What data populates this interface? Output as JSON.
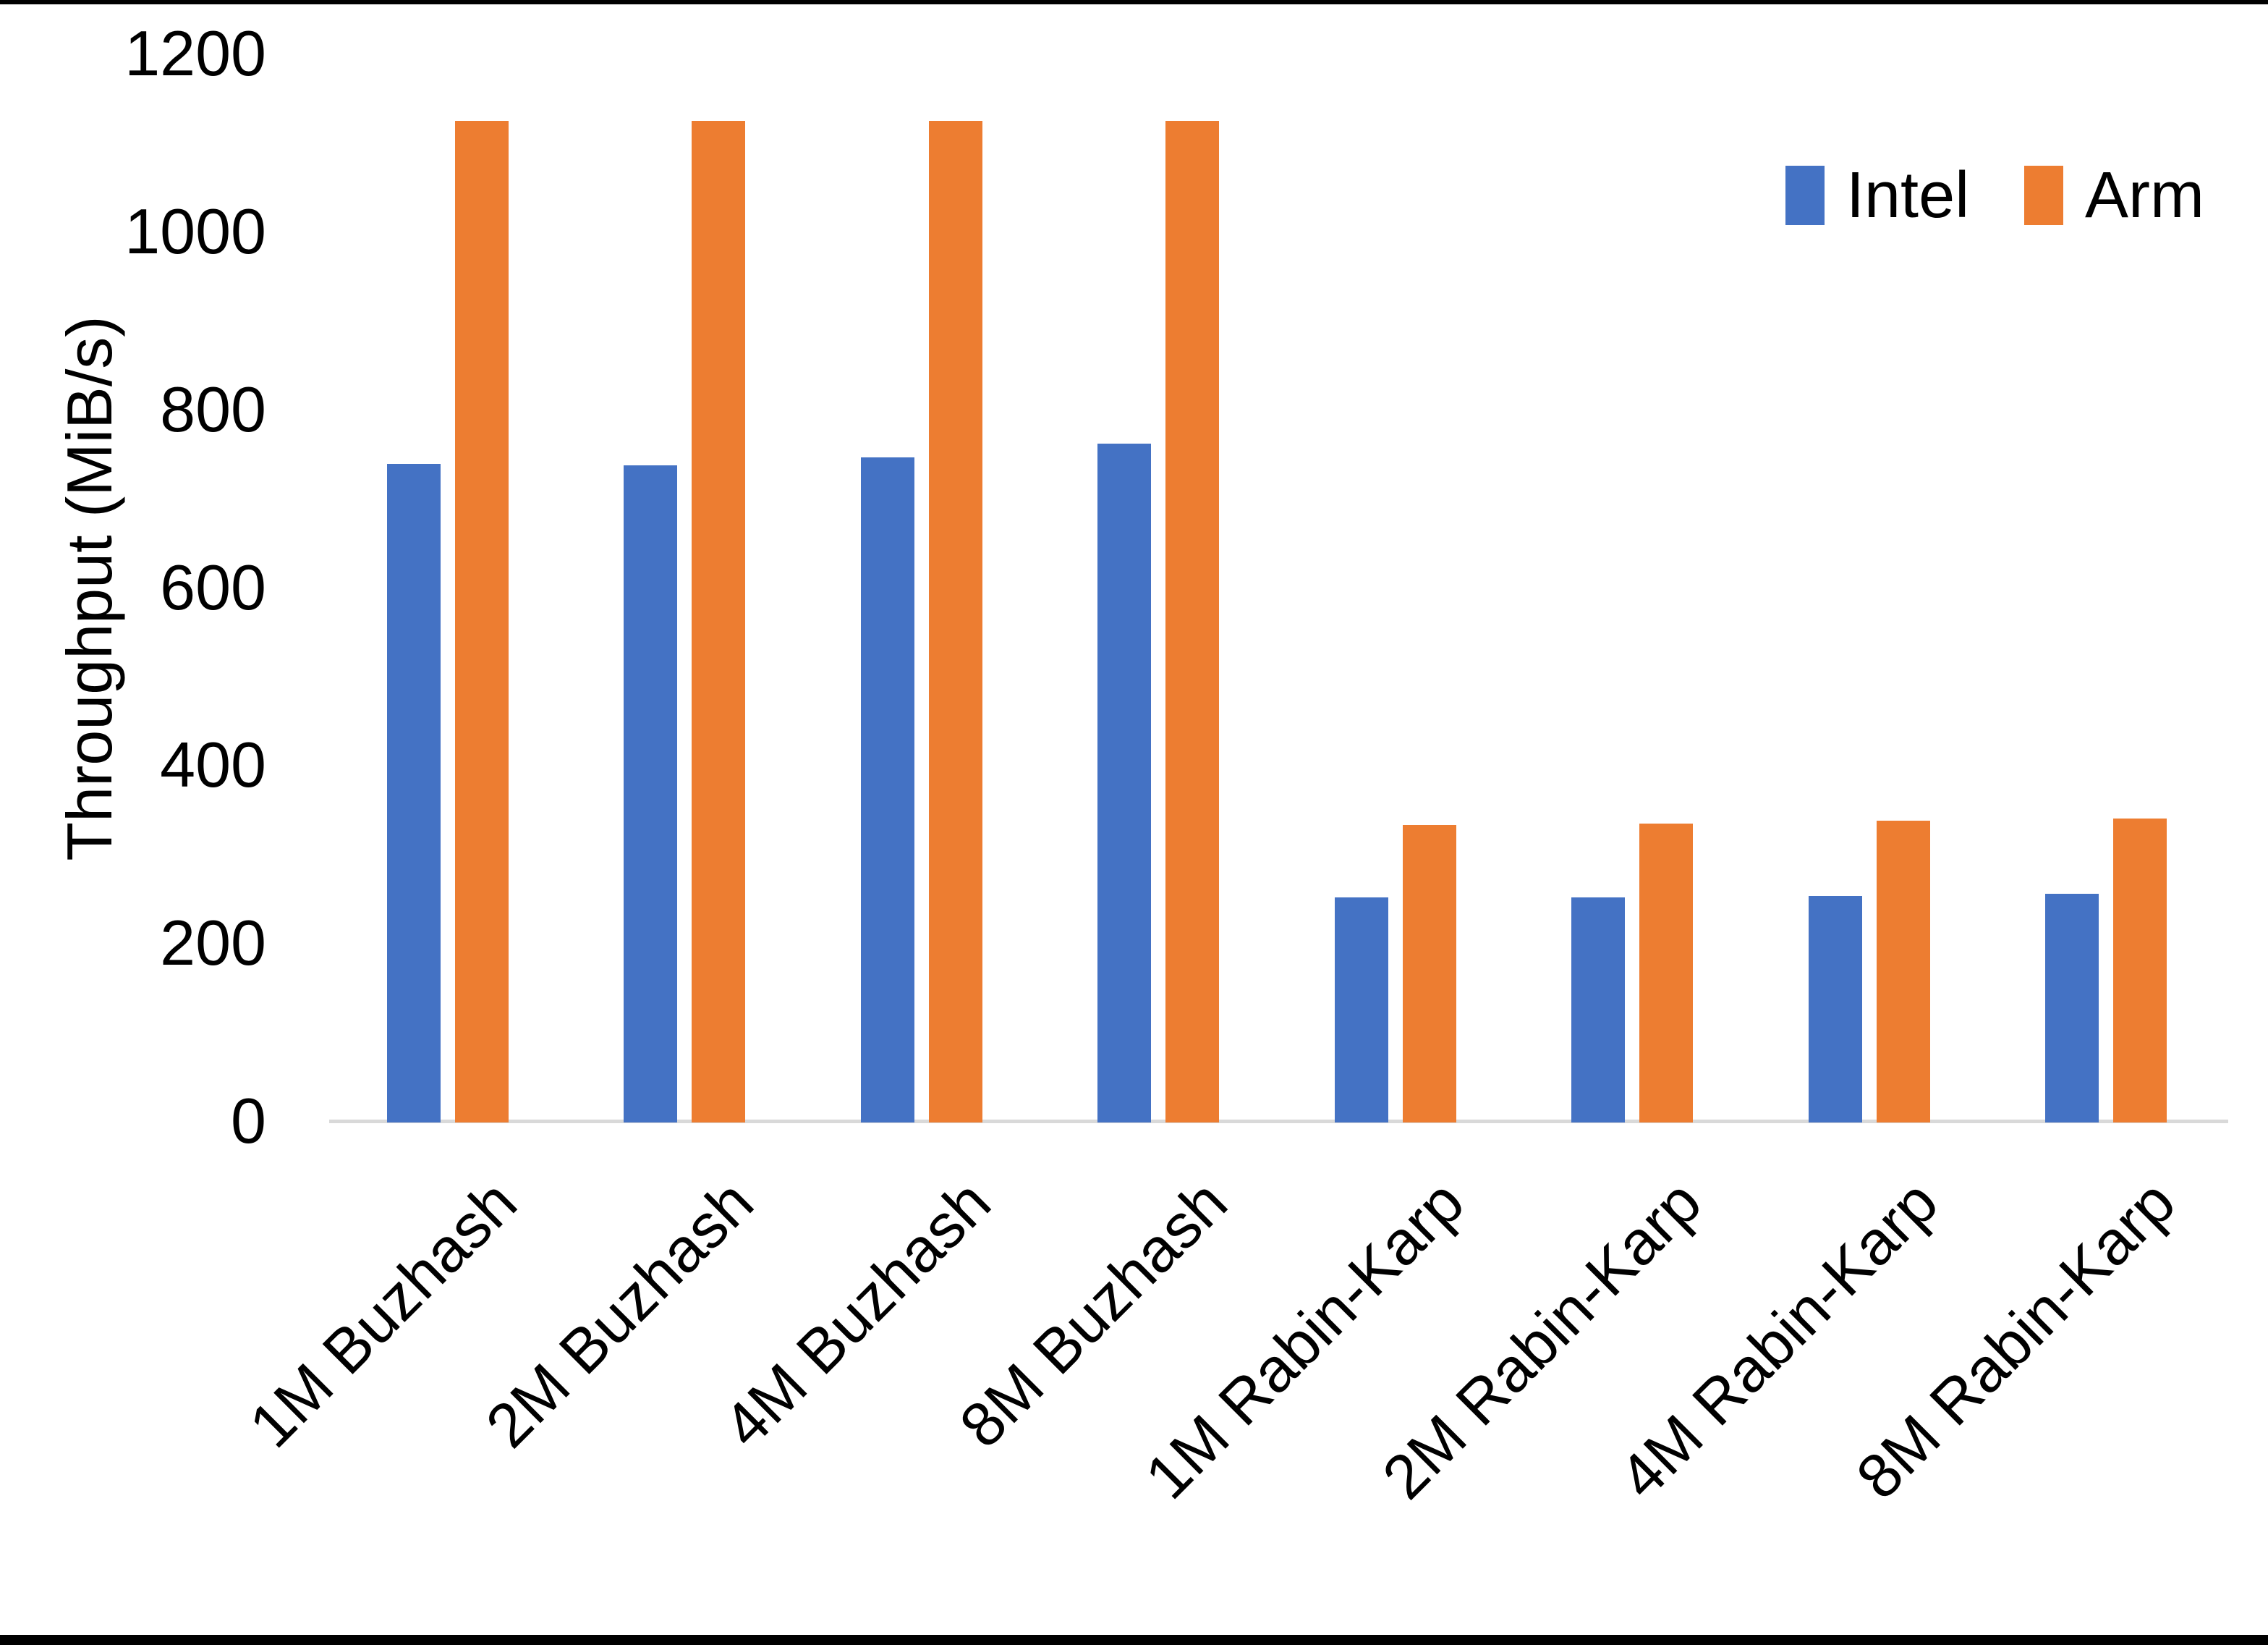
{
  "chart_data": {
    "type": "bar",
    "title": "",
    "xlabel": "",
    "ylabel": "Throughput (MiB/s)",
    "ylim": [
      0,
      1200
    ],
    "yticks": [
      0,
      200,
      400,
      600,
      800,
      1000,
      1200
    ],
    "grid": false,
    "legend_position": "top-right",
    "categories": [
      "1M Buzhash",
      "2M Buzhash",
      "4M Buzhash",
      "8M Buzhash",
      "1M Rabin-Karp",
      "2M Rabin-Karp",
      "4M Rabin-Karp",
      "8M Rabin-Karp"
    ],
    "series": [
      {
        "name": "Intel",
        "color": "#4472C4",
        "values": [
          740,
          739,
          748,
          763,
          253,
          253,
          255,
          257
        ]
      },
      {
        "name": "Arm",
        "color": "#ED7D31",
        "values": [
          1126,
          1126,
          1126,
          1126,
          334,
          336,
          339,
          342
        ]
      }
    ]
  }
}
